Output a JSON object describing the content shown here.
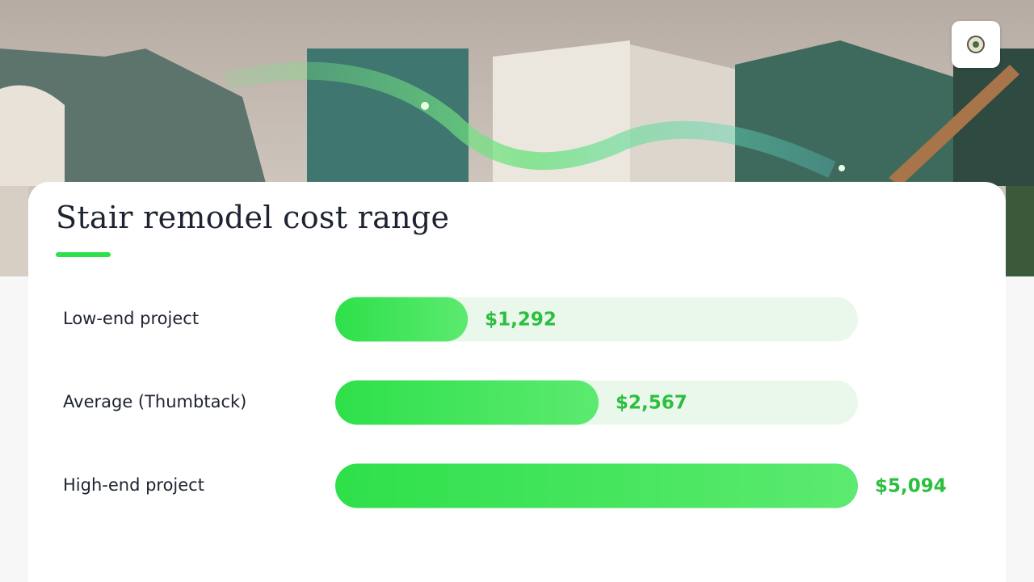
{
  "chart_data": {
    "type": "bar",
    "orientation": "horizontal",
    "title": "Stair remodel cost range",
    "categories": [
      "Low-end project",
      "Average (Thumbtack)",
      "High-end project"
    ],
    "values": [
      1292,
      2567,
      5094
    ],
    "value_labels": [
      "$1,292",
      "$2,567",
      "$5,094"
    ],
    "color": "#2ee04a"
  }
}
